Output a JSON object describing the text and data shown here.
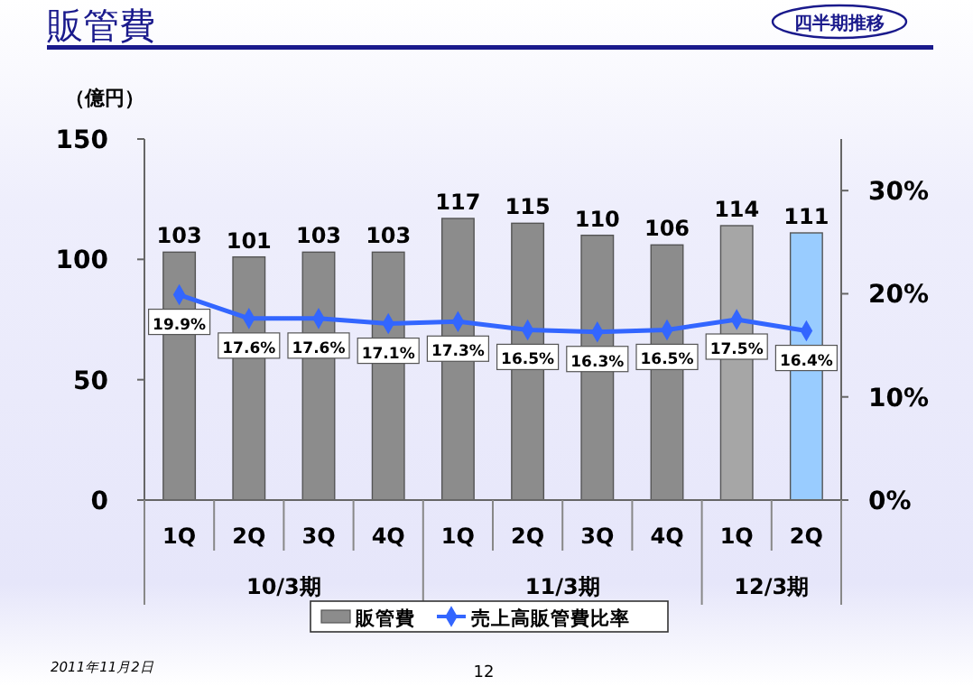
{
  "chart_data": {
    "type": "bar",
    "title": "販管費",
    "ylabel": "（億円）",
    "categories": [
      "1Q",
      "2Q",
      "3Q",
      "4Q",
      "1Q",
      "2Q",
      "3Q",
      "4Q",
      "1Q",
      "2Q"
    ],
    "series": [
      {
        "name": "販管費",
        "color": "#8c8c8c",
        "colors": [
          "#8c8c8c",
          "#8c8c8c",
          "#8c8c8c",
          "#8c8c8c",
          "#8c8c8c",
          "#8c8c8c",
          "#8c8c8c",
          "#8c8c8c",
          "#a6a6a6",
          "#99ccff"
        ],
        "values": [
          103,
          101,
          103,
          103,
          117,
          115,
          110,
          106,
          114,
          111
        ]
      },
      {
        "name": "売上高販管費比率",
        "type": "line",
        "axis": "y2",
        "color": "#3366ff",
        "values": [
          19.9,
          17.6,
          17.6,
          17.1,
          17.3,
          16.5,
          16.3,
          16.5,
          17.5,
          16.4
        ],
        "value_labels": [
          "19.9%",
          "17.6%",
          "17.6%",
          "17.1%",
          "17.3%",
          "16.5%",
          "16.3%",
          "16.5%",
          "17.5%",
          "16.4%"
        ]
      }
    ],
    "ylim": [
      0,
      150
    ],
    "yticks": [
      0,
      50,
      100,
      150
    ],
    "y2lim": [
      0,
      35
    ],
    "y2ticks": [
      {
        "value": 0,
        "label": "0%"
      },
      {
        "value": 10,
        "label": "10%"
      },
      {
        "value": 20,
        "label": "20%"
      },
      {
        "value": 30,
        "label": "30%"
      }
    ],
    "data_labels": true,
    "grid": false,
    "legend": "bottom",
    "marker": "diamond",
    "line_style": "solid",
    "annotations": [
      "10/3期",
      "11/3期",
      "12/3期",
      "四半期推移",
      "2011年11月2日",
      "12"
    ]
  }
}
